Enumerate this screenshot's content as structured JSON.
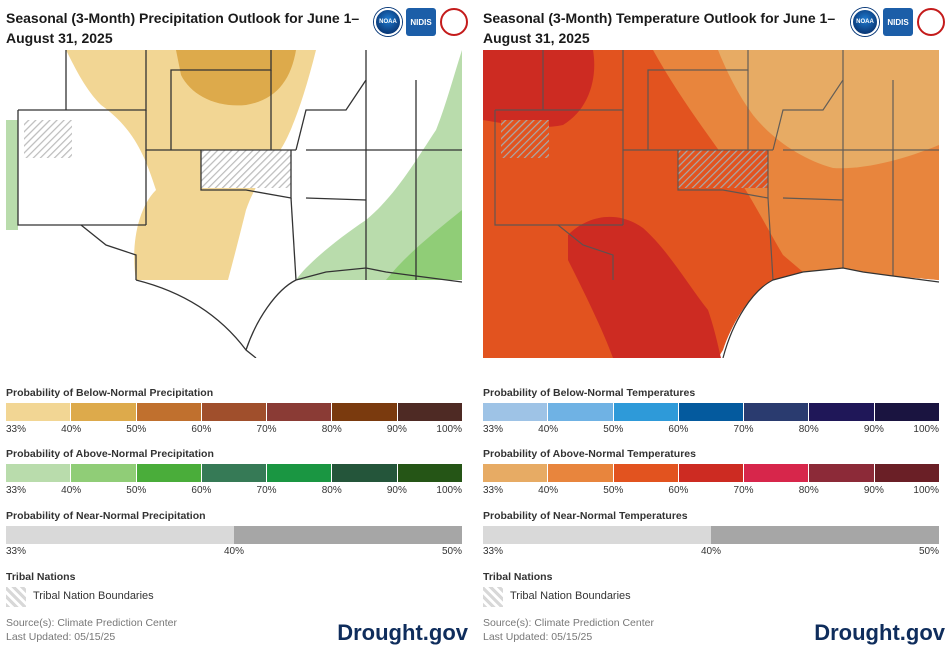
{
  "left": {
    "title": "Seasonal (3-Month) Precipitation Outlook for June 1–August 31, 2025",
    "logos": [
      "NOAA",
      "NIDIS",
      "National Weather Service"
    ],
    "below": {
      "title": "Probability of Below-Normal Precipitation",
      "colors": [
        "#f2d694",
        "#ddaa4b",
        "#c0702e",
        "#a04f2c",
        "#8a3b35",
        "#7a3a0e",
        "#4e2a24"
      ],
      "ticks": [
        "33%",
        "40%",
        "50%",
        "60%",
        "70%",
        "80%",
        "90%",
        "100%"
      ]
    },
    "above": {
      "title": "Probability of Above-Normal Precipitation",
      "colors": [
        "#b9dcac",
        "#90cd77",
        "#4aad3a",
        "#367a56",
        "#1a9642",
        "#24553a",
        "#255516"
      ],
      "ticks": [
        "33%",
        "40%",
        "50%",
        "60%",
        "70%",
        "80%",
        "90%",
        "100%"
      ]
    },
    "near": {
      "title": "Probability of Near-Normal Precipitation",
      "colors": [
        "#d9d9d9",
        "#a6a6a6"
      ],
      "ticks": [
        "33%",
        "40%",
        "50%"
      ]
    },
    "tribal_title": "Tribal Nations",
    "tribal_label": "Tribal Nation Boundaries",
    "source": "Source(s): Climate Prediction Center",
    "updated": "Last Updated: 05/15/25",
    "brand": "Drought.gov"
  },
  "right": {
    "title": "Seasonal (3-Month) Temperature Outlook for June 1–August 31, 2025",
    "logos": [
      "NOAA",
      "NIDIS",
      "National Weather Service"
    ],
    "below": {
      "title": "Probability of Below-Normal Temperatures",
      "colors": [
        "#9ec3e6",
        "#6fb2e4",
        "#2e9ad9",
        "#045a9e",
        "#2a3b6f",
        "#1f1758",
        "#1a1440"
      ],
      "ticks": [
        "33%",
        "40%",
        "50%",
        "60%",
        "70%",
        "80%",
        "90%",
        "100%"
      ]
    },
    "above": {
      "title": "Probability of Above-Normal Temperatures",
      "colors": [
        "#e7ab64",
        "#e8853d",
        "#e2531f",
        "#cd2b22",
        "#d7264b",
        "#8c2a38",
        "#6a1f26"
      ],
      "ticks": [
        "33%",
        "40%",
        "50%",
        "60%",
        "70%",
        "80%",
        "90%",
        "100%"
      ]
    },
    "near": {
      "title": "Probability of Near-Normal Temperatures",
      "colors": [
        "#d9d9d9",
        "#a6a6a6"
      ],
      "ticks": [
        "33%",
        "40%",
        "50%"
      ]
    },
    "tribal_title": "Tribal Nations",
    "tribal_label": "Tribal Nation Boundaries",
    "source": "Source(s): Climate Prediction Center",
    "updated": "Last Updated: 05/15/25",
    "brand": "Drought.gov"
  },
  "map_colors": {
    "land": "#ffffff",
    "state_line": "#333333",
    "county_line": "#bbbbbb",
    "precip_below_33": "#f2d694",
    "precip_below_40": "#ddaa4b",
    "precip_above_33": "#b9dcac",
    "precip_above_40": "#90cd77",
    "temp_above_40": "#e8853d",
    "temp_above_50": "#e2531f",
    "temp_above_60": "#cd2b22",
    "temp_above_33": "#e7ab64"
  }
}
